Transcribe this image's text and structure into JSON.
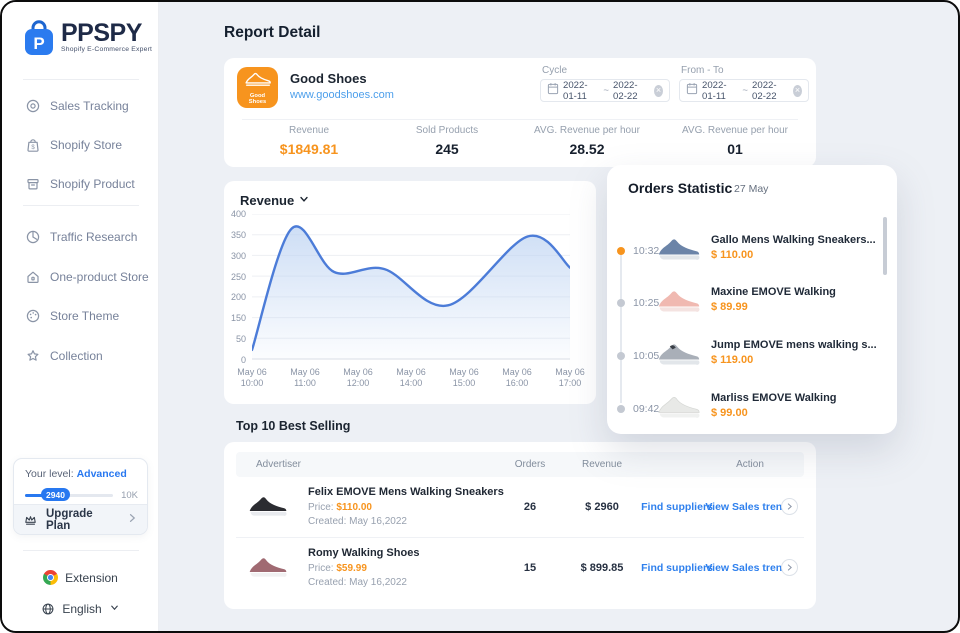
{
  "app": {
    "name": "PPSPY",
    "tagline": "Shopify E-Commerce Expert",
    "logo_letter": "P"
  },
  "colors": {
    "accent_orange": "#F7941E",
    "brand_blue": "#2878F0",
    "link_blue": "#2F80ED"
  },
  "sidebar": {
    "menu": [
      {
        "label": "Sales Tracking"
      },
      {
        "label": "Shopify Store"
      },
      {
        "label": "Shopify Product"
      },
      {
        "label": "Traffic Research"
      },
      {
        "label": "One-product Store"
      },
      {
        "label": "Store Theme"
      },
      {
        "label": "Collection"
      }
    ],
    "level": {
      "label": "Your level:",
      "value": "Advanced",
      "progress": "2940",
      "max": "10K"
    },
    "upgrade_label": "Upgrade Plan",
    "extension_label": "Extension",
    "language_label": "English"
  },
  "header": {
    "title": "Report Detail"
  },
  "store": {
    "badge_line1": "Good",
    "badge_line2": "Shoes",
    "name": "Good Shoes",
    "url": "www.goodshoes.com",
    "cycle": {
      "label": "Cycle",
      "start": "2022-01-11",
      "separator": "~",
      "end": "2022-02-22"
    },
    "from_to": {
      "label": "From - To",
      "start": "2022-01-11",
      "separator": "~",
      "end": "2022-02-22"
    }
  },
  "stats": [
    {
      "label": "Revenue",
      "value": "$1849.81"
    },
    {
      "label": "Sold Products",
      "value": "245"
    },
    {
      "label": "AVG. Revenue per hour",
      "value": "28.52"
    },
    {
      "label": "AVG. Revenue per hour",
      "value": "01"
    }
  ],
  "chart_data": {
    "type": "area",
    "title": "Revenue",
    "x_ticks": [
      {
        "l1": "May 06",
        "l2": "10:00"
      },
      {
        "l1": "May 06",
        "l2": "11:00"
      },
      {
        "l1": "May 06",
        "l2": "12:00"
      },
      {
        "l1": "May 06",
        "l2": "14:00"
      },
      {
        "l1": "May 06",
        "l2": "15:00"
      },
      {
        "l1": "May 06",
        "l2": "16:00"
      },
      {
        "l1": "May 06",
        "l2": "17:00"
      }
    ],
    "y_ticks": [
      "400",
      "350",
      "300",
      "250",
      "200",
      "150",
      "50",
      "0"
    ],
    "ylim": [
      0,
      400
    ],
    "x_range": [
      0,
      6
    ],
    "points": [
      {
        "x": 0,
        "y": 25
      },
      {
        "x": 0.75,
        "y": 360
      },
      {
        "x": 1.55,
        "y": 240
      },
      {
        "x": 2.5,
        "y": 248
      },
      {
        "x": 3.7,
        "y": 148
      },
      {
        "x": 5.2,
        "y": 338
      },
      {
        "x": 6,
        "y": 252
      }
    ],
    "line_color": "#4C7CD8",
    "fill_color": "#BDD3F2",
    "grid_color": "#EDEFF3",
    "legend": "none"
  },
  "orders": {
    "title": "Orders Statistic",
    "date": "27 May",
    "items": [
      {
        "time": "10:32",
        "name": "Gallo Mens Walking Sneakers...",
        "price": "$ 110.00",
        "shoe_color": "#6B84A8",
        "active": true
      },
      {
        "time": "10:25",
        "name": "Maxine EMOVE Walking",
        "price": "$ 89.99",
        "shoe_color": "#F0B9B1",
        "active": false
      },
      {
        "time": "10:05",
        "name": "Jump EMOVE mens walking s...",
        "price": "$ 119.00",
        "shoe_color": "#A9AFB8",
        "active": false
      },
      {
        "time": "09:42",
        "name": "Marliss EMOVE Walking",
        "price": "$ 99.00",
        "shoe_color": "#E8E9E7",
        "active": false
      }
    ]
  },
  "top_selling": {
    "title": "Top 10 Best Selling",
    "columns": [
      "Advertiser",
      "Orders",
      "Revenue",
      "Action"
    ],
    "rows": [
      {
        "name": "Felix EMOVE Mens Walking Sneakers",
        "price_label": "Price:",
        "price": "$110.00",
        "created_label": "Created:",
        "created": "May 16,2022",
        "orders": "26",
        "revenue": "$ 2960",
        "find_label": "Find suppliers",
        "view_label": "View Sales trend",
        "shoe_color": "#2B2C31"
      },
      {
        "name": "Romy Walking Shoes",
        "price_label": "Price:",
        "price": "$59.99",
        "created_label": "Created:",
        "created": "May 16,2022",
        "orders": "15",
        "revenue": "$ 899.85",
        "find_label": "Find suppliers",
        "view_label": "View Sales trend",
        "shoe_color": "#A06A72"
      }
    ]
  }
}
